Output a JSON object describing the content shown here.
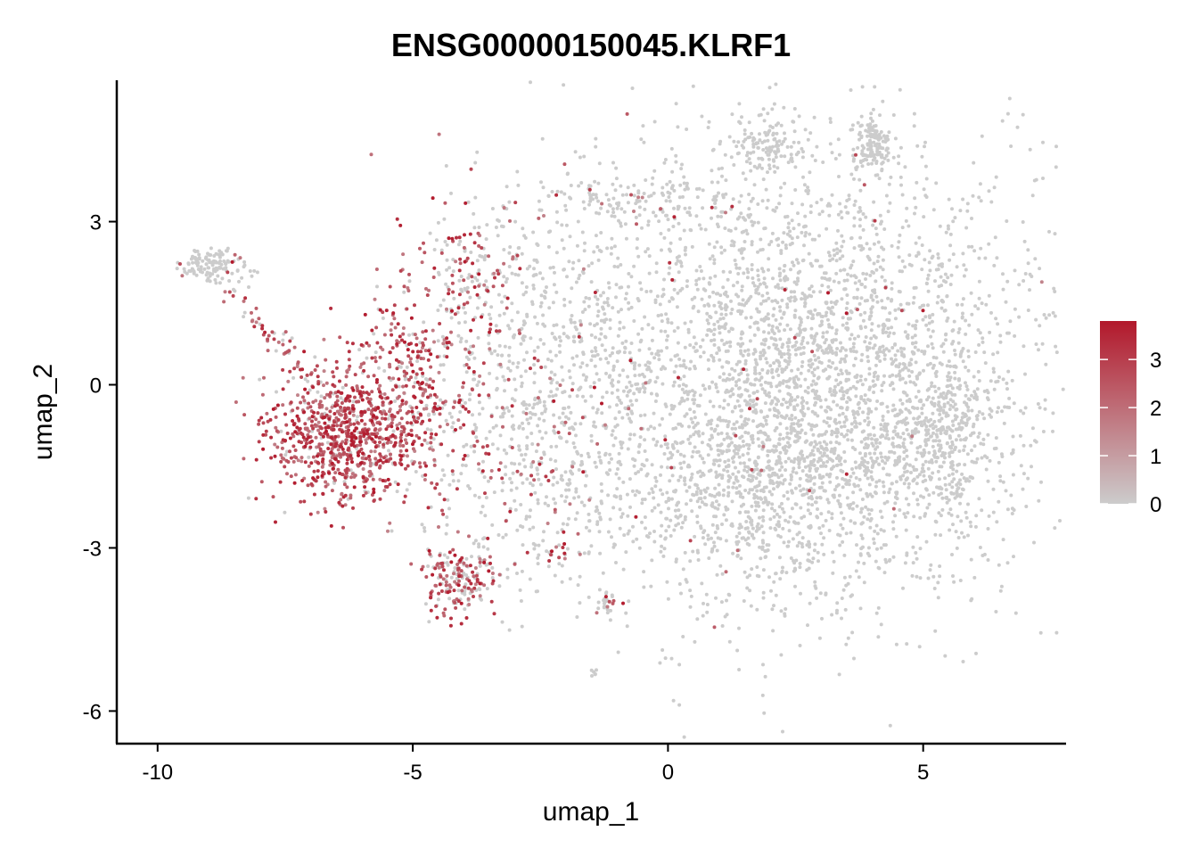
{
  "chart_data": {
    "type": "scatter",
    "title": "ENSG00000150045.KLRF1",
    "xlabel": "umap_1",
    "ylabel": "umap_2",
    "xlim": [
      -10.8,
      7.8
    ],
    "ylim": [
      -6.6,
      5.6
    ],
    "x_ticks": [
      -10,
      -5,
      0,
      5
    ],
    "y_ticks": [
      -6,
      -3,
      0,
      3
    ],
    "x_tick_labels": [
      "-10",
      "-5",
      "0",
      "5"
    ],
    "y_tick_labels": [
      "-6",
      "-3",
      "0",
      "3"
    ],
    "grid": false,
    "legend": {
      "placement": "right",
      "type": "colorbar",
      "min": 0,
      "max": 3.8,
      "ticks": [
        0,
        1,
        2,
        3
      ],
      "tick_labels": [
        "0",
        "1",
        "2",
        "3"
      ],
      "low_color": "#cccccc",
      "high_color": "#b2182b"
    },
    "clusters": [
      {
        "cx": 2.8,
        "cy": 0.2,
        "sx": 2.3,
        "sy": 2.0,
        "n": 3200,
        "expr_frac": 0.008
      },
      {
        "cx": 1.8,
        "cy": -1.8,
        "sx": 1.8,
        "sy": 1.0,
        "n": 700,
        "expr_frac": 0.01
      },
      {
        "cx": 5.3,
        "cy": -1.0,
        "sx": 0.5,
        "sy": 0.9,
        "n": 300,
        "expr_frac": 0.0
      },
      {
        "cx": 4.0,
        "cy": 4.4,
        "sx": 0.2,
        "sy": 0.25,
        "n": 140,
        "expr_frac": 0.02
      },
      {
        "cx": 2.0,
        "cy": 4.4,
        "sx": 0.4,
        "sy": 0.25,
        "n": 120,
        "expr_frac": 0.0
      },
      {
        "cx": -2.0,
        "cy": 1.0,
        "sx": 1.2,
        "sy": 1.8,
        "n": 500,
        "expr_frac": 0.05
      },
      {
        "cx": -0.5,
        "cy": 3.4,
        "sx": 1.0,
        "sy": 0.25,
        "n": 120,
        "expr_frac": 0.08
      },
      {
        "cx": -3.8,
        "cy": 1.8,
        "sx": 0.5,
        "sy": 0.8,
        "n": 180,
        "expr_frac": 0.45
      },
      {
        "cx": -3.0,
        "cy": -1.5,
        "sx": 0.8,
        "sy": 1.0,
        "n": 250,
        "expr_frac": 0.25
      },
      {
        "cx": -6.3,
        "cy": -0.9,
        "sx": 0.75,
        "sy": 0.6,
        "n": 800,
        "expr_frac": 0.9
      },
      {
        "cx": -5.0,
        "cy": 0.0,
        "sx": 0.7,
        "sy": 1.1,
        "n": 350,
        "expr_frac": 0.75
      },
      {
        "cx": -4.1,
        "cy": -3.6,
        "sx": 0.35,
        "sy": 0.35,
        "n": 180,
        "expr_frac": 0.65
      },
      {
        "cx": -8.9,
        "cy": 2.2,
        "sx": 0.35,
        "sy": 0.18,
        "n": 130,
        "expr_frac": 0.05
      },
      {
        "cx": -1.2,
        "cy": -4.0,
        "sx": 0.15,
        "sy": 0.1,
        "n": 30,
        "expr_frac": 0.15
      },
      {
        "cx": -1.5,
        "cy": -5.3,
        "sx": 0.05,
        "sy": 0.05,
        "n": 6,
        "expr_frac": 0.0
      },
      {
        "cx": -2.3,
        "cy": -3.1,
        "sx": 0.25,
        "sy": 0.1,
        "n": 20,
        "expr_frac": 0.4
      }
    ],
    "bridge": {
      "from": [
        -8.5,
        1.7
      ],
      "to": [
        -6.8,
        -0.2
      ],
      "n": 60,
      "expr_frac": 0.7
    }
  }
}
